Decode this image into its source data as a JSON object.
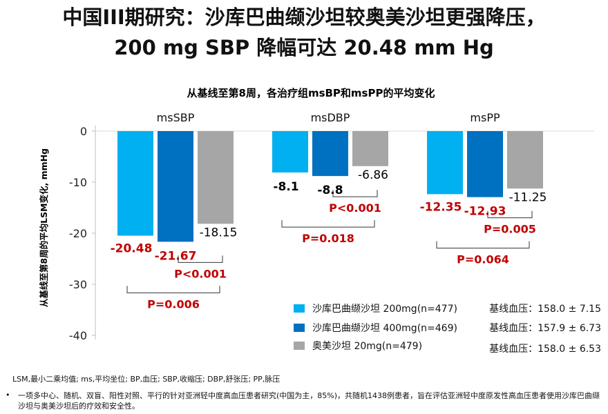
{
  "header": {
    "title_line1": "中国III期研究：沙库巴曲缬沙坦较奥美沙坦更强降压，",
    "title_line2": "200 mg SBP 降幅可达 20.48 mm Hg"
  },
  "chart_data": {
    "type": "bar",
    "title": "从基线至第8周，各治疗组msBP和msPP的平均变化",
    "ylabel": "从基线至第8周的平均LSM变化, mmHg",
    "ylim": [
      -40,
      0
    ],
    "yticks": [
      "0",
      "-10",
      "-20",
      "-30",
      "-40"
    ],
    "categories": [
      "msSBP",
      "msDBP",
      "msPP"
    ],
    "series": [
      {
        "name": "沙库巴曲缬沙坦 200mg(n=477)",
        "values": [
          -20.48,
          -8.1,
          -12.35
        ],
        "labels": [
          "-20.48",
          "-8.1",
          "-12.35"
        ],
        "baseline": "基线血压：158.0 ± 7.15",
        "color": "#00B0F0"
      },
      {
        "name": "沙库巴曲缬沙坦 400mg(n=469)",
        "values": [
          -21.67,
          -8.8,
          -12.93
        ],
        "labels": [
          "-21.67",
          "-8.8",
          "-12.93"
        ],
        "baseline": "基线血压：157.9 ± 6.73",
        "color": "#0070C0"
      },
      {
        "name": "奥美沙坦 20mg(n=479)",
        "values": [
          -18.15,
          -6.86,
          -11.25
        ],
        "labels": [
          "-18.15",
          "-6.86",
          "-11.25"
        ],
        "baseline": "基线血压：158.0 ± 6.53",
        "color": "#A6A6A6"
      }
    ],
    "label_colors": [
      [
        "#C00000",
        "#C00000",
        "#000000"
      ],
      [
        "#000000",
        "#000000",
        "#000000"
      ],
      [
        "#C00000",
        "#C00000",
        "#000000"
      ]
    ],
    "comparisons": [
      {
        "group": 0,
        "pair": [
          1,
          2
        ],
        "label": "P<0.001"
      },
      {
        "group": 0,
        "pair": [
          0,
          2
        ],
        "label": "P=0.006"
      },
      {
        "group": 1,
        "pair": [
          1,
          2
        ],
        "label": "P<0.001"
      },
      {
        "group": 1,
        "pair": [
          0,
          2
        ],
        "label": "P=0.018"
      },
      {
        "group": 2,
        "pair": [
          1,
          2
        ],
        "label": "P=0.005"
      },
      {
        "group": 2,
        "pair": [
          0,
          2
        ],
        "label": "P=0.064"
      }
    ],
    "p_color": "#C00000",
    "grid": false,
    "legend_position": "bottom-right"
  },
  "footnotes": {
    "abbreviations": "LSM,最小二乘均值; ms,平均坐位; BP,血压; SBP,收缩压; DBP,舒张压; PP,脉压",
    "bullet": "•",
    "study": "一项多中心、随机、双盲、阳性对照、平行的针对亚洲轻中度高血压患者研究(中国为主，85%)，共随机1438例患者，旨在评估亚洲轻中度原发性高血压患者使用沙库巴曲缬沙坦与奥美沙坦后的疗效和安全性。"
  }
}
